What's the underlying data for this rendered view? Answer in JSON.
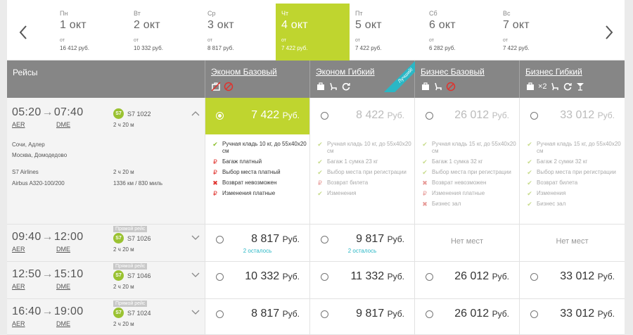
{
  "dates": [
    {
      "dow": "Пн",
      "date": "1 окт",
      "from": "от",
      "price": "16 412 руб."
    },
    {
      "dow": "Вт",
      "date": "2 окт",
      "from": "от",
      "price": "10 332 руб."
    },
    {
      "dow": "Ср",
      "date": "3 окт",
      "from": "от",
      "price": "8 817 руб."
    },
    {
      "dow": "Чт",
      "date": "4 окт",
      "from": "от",
      "price": "7 422 руб.",
      "active": true
    },
    {
      "dow": "Пт",
      "date": "5 окт",
      "from": "от",
      "price": "7 422 руб."
    },
    {
      "dow": "Сб",
      "date": "6 окт",
      "from": "от",
      "price": "6 282 руб."
    },
    {
      "dow": "Вс",
      "date": "7 окт",
      "from": "от",
      "price": "7 422 руб."
    }
  ],
  "header": {
    "flights": "Рейсы",
    "fares": [
      "Эконом Базовый",
      "Эконом Гибкий",
      "Бизнес Базовый",
      "Бизнес Гибкий"
    ],
    "best_label": "Лучший!",
    "bag_count": "×2",
    "colors": {
      "accent": "#bfd52f",
      "header": "#868686",
      "teal": "#2ab7c5"
    }
  },
  "flights": [
    {
      "dep": "05:20",
      "arr": "07:40",
      "from": "AER",
      "to": "DME",
      "badge": "",
      "flight": "S7 1022",
      "duration": "2 ч 20 м",
      "details": {
        "route1": "Сочи, Адлер",
        "route2": "Москва, Домодедово",
        "airline": "S7 Airlines",
        "duration": "2 ч 20 м",
        "aircraft": "Airbus A320-100/200",
        "distance": "1336 км / 830 миль"
      },
      "fares": [
        {
          "price": "7 422",
          "cur": "Руб.",
          "selected": true
        },
        {
          "price": "8 422",
          "cur": "Руб."
        },
        {
          "price": "26 012",
          "cur": "Руб."
        },
        {
          "price": "33 012",
          "cur": "Руб."
        }
      ]
    },
    {
      "dep": "09:40",
      "arr": "12:00",
      "from": "AER",
      "to": "DME",
      "badge": "Прямой рейс",
      "flight": "S7 1026",
      "duration": "2 ч 20 м",
      "fares": [
        {
          "price": "8 817",
          "cur": "Руб.",
          "left": "2 осталось"
        },
        {
          "price": "9 817",
          "cur": "Руб.",
          "left": "2 осталось"
        },
        {
          "none": "Нет мест"
        },
        {
          "none": "Нет мест"
        }
      ]
    },
    {
      "dep": "12:50",
      "arr": "15:10",
      "from": "AER",
      "to": "DME",
      "badge": "Прямой рейс",
      "flight": "S7 1046",
      "duration": "2 ч 20 м",
      "fares": [
        {
          "price": "10 332",
          "cur": "Руб."
        },
        {
          "price": "11 332",
          "cur": "Руб."
        },
        {
          "price": "26 012",
          "cur": "Руб."
        },
        {
          "price": "33 012",
          "cur": "Руб."
        }
      ]
    },
    {
      "dep": "16:40",
      "arr": "19:00",
      "from": "AER",
      "to": "DME",
      "badge": "Прямой рейс",
      "flight": "S7 1024",
      "duration": "2 ч 20 м",
      "fares": [
        {
          "price": "8 817",
          "cur": "Руб."
        },
        {
          "price": "9 817",
          "cur": "Руб."
        },
        {
          "price": "26 012",
          "cur": "Руб."
        },
        {
          "price": "33 012",
          "cur": "Руб."
        }
      ]
    }
  ],
  "features": [
    [
      {
        "icon": "check",
        "text": "Ручная кладь 10 кг, до 55х40х20 см"
      },
      {
        "icon": "rub",
        "text": "Багаж платный"
      },
      {
        "icon": "rub",
        "text": "Выбор места платный"
      },
      {
        "icon": "cross",
        "text": "Возврат невозможен"
      },
      {
        "icon": "rub",
        "text": "Изменения платные"
      }
    ],
    [
      {
        "icon": "check",
        "text": "Ручная кладь 10 кг, до 55х40х20 см"
      },
      {
        "icon": "check",
        "text": "Багаж 1 сумка 23 кг"
      },
      {
        "icon": "check",
        "text": "Выбор места при регистрации"
      },
      {
        "icon": "rub",
        "text": "Возврат билета"
      },
      {
        "icon": "check",
        "text": "Изменения"
      }
    ],
    [
      {
        "icon": "check",
        "text": "Ручная кладь 15 кг, до 55х40х20 см"
      },
      {
        "icon": "check",
        "text": "Багаж 1 сумка 32 кг"
      },
      {
        "icon": "check",
        "text": "Выбор места при регистрации"
      },
      {
        "icon": "cross",
        "text": "Возврат невозможен"
      },
      {
        "icon": "rub",
        "text": "Изменения платные"
      },
      {
        "icon": "cross",
        "text": "Бизнес зал"
      }
    ],
    [
      {
        "icon": "check",
        "text": "Ручная кладь 15 кг, до 55х40х20 см"
      },
      {
        "icon": "check",
        "text": "Багаж 2 сумки 32 кг"
      },
      {
        "icon": "check",
        "text": "Выбор места при регистрации"
      },
      {
        "icon": "check",
        "text": "Возврат билета"
      },
      {
        "icon": "check",
        "text": "Изменения"
      },
      {
        "icon": "check",
        "text": "Бизнес зал"
      }
    ]
  ]
}
